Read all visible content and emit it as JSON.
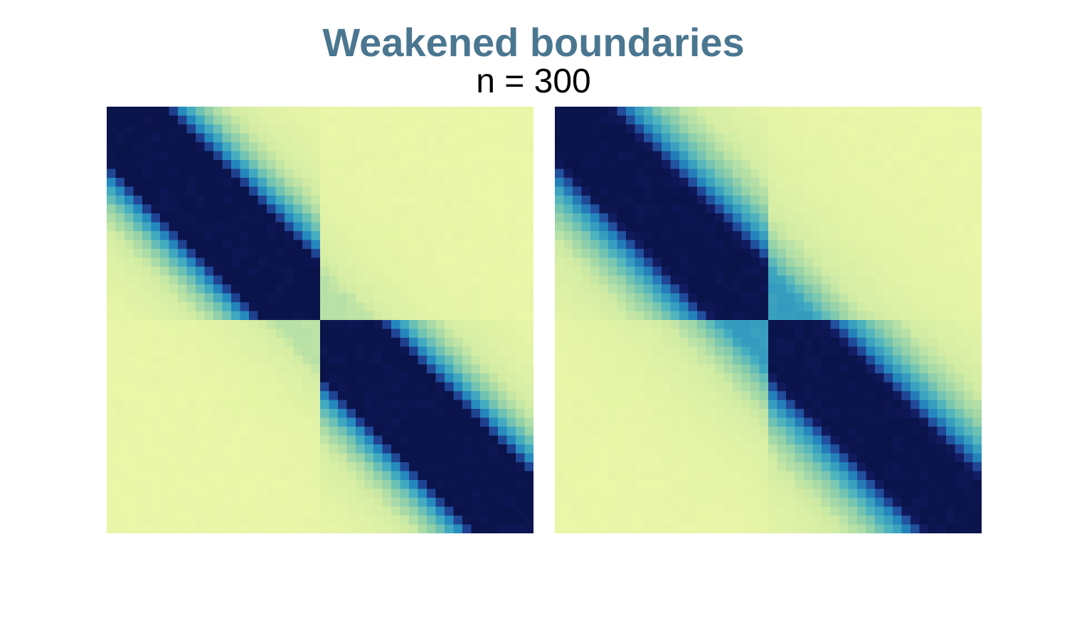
{
  "chart_data": {
    "type": "heatmap",
    "title": "Weakened boundaries",
    "subtitle": "n = 300",
    "grid": false,
    "colormap": "YlGnBu",
    "colors": {
      "title": "#4a7690",
      "low": "#eaf6a8",
      "high": "#0b134b"
    },
    "panels": [
      {
        "name": "",
        "bins": 48,
        "domain_boundary_bin": 24,
        "decay_length": 5.0,
        "cross_domain_attenuation": 0.28,
        "intra_domain_boost": 1.15,
        "core_halfwidth": 5.5
      },
      {
        "name": "",
        "bins": 48,
        "domain_boundary_bin": 24,
        "decay_length": 6.5,
        "cross_domain_attenuation": 0.62,
        "intra_domain_boost": 1.05,
        "core_halfwidth": 5.5
      }
    ]
  }
}
